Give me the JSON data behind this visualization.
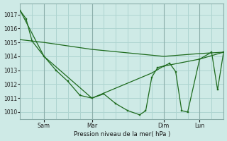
{
  "bg_color": "#ceeae6",
  "line_color": "#1e6b1e",
  "grid_color": "#aed4d0",
  "title": "Pression niveau de la mer( hPa )",
  "ylim": [
    1009.5,
    1017.8
  ],
  "yticks": [
    1010,
    1011,
    1012,
    1013,
    1014,
    1015,
    1016,
    1017
  ],
  "xtick_labels": [
    "Sam",
    "Mar",
    "Dim",
    "Lun"
  ],
  "xtick_positions": [
    1.0,
    3.0,
    6.0,
    7.5
  ],
  "xlim": [
    0.0,
    8.5
  ],
  "num_grid_cols": 17,
  "series1_x": [
    0.0,
    0.25,
    0.5,
    1.0,
    1.5,
    2.0,
    2.5,
    3.0,
    3.5,
    4.0,
    4.5,
    5.0,
    5.25,
    5.5,
    5.75,
    6.0,
    6.25,
    6.5,
    6.75,
    7.0,
    7.5,
    8.0,
    8.25,
    8.5
  ],
  "series1_y": [
    1017.3,
    1016.7,
    1015.1,
    1014.0,
    1013.0,
    1012.2,
    1011.2,
    1011.0,
    1011.3,
    1010.6,
    1010.1,
    1009.8,
    1010.1,
    1012.5,
    1013.2,
    1013.3,
    1013.5,
    1012.9,
    1010.1,
    1010.0,
    1013.8,
    1014.3,
    1011.6,
    1014.3
  ],
  "series2_x": [
    0.0,
    1.0,
    3.0,
    6.0,
    7.5,
    8.5
  ],
  "series2_y": [
    1015.2,
    1015.0,
    1014.5,
    1014.0,
    1014.2,
    1014.3
  ],
  "series3_x": [
    0.0,
    1.0,
    3.0,
    5.5,
    6.0,
    7.5,
    8.5
  ],
  "series3_y": [
    1017.3,
    1014.0,
    1011.0,
    1012.8,
    1013.3,
    1013.8,
    1014.3
  ]
}
